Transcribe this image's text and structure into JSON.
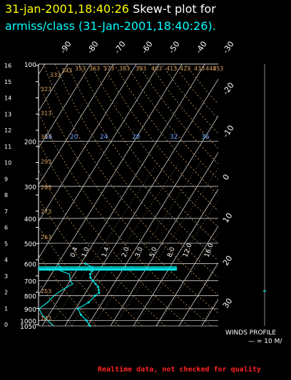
{
  "header": {
    "timestamp": "31-jan-2001,18:40:26",
    "title": "Skew-t plot for",
    "subtitle": "armiss/class (31-Jan-2001,18:40:26)."
  },
  "footer": {
    "notice": "Realtime data, not checked for quality"
  },
  "colors": {
    "header_timestamp": "#ffff00",
    "header_title": "#ffffff",
    "subtitle": "#00ffff",
    "grid": "#cccccc",
    "dry_adiabat": "#d9a060",
    "moist_adiabat": "#c9b98a",
    "mixing_ratio": "#6aa6ff",
    "sounding": "#00e5e5",
    "notice": "#ff2222"
  },
  "chart_data": {
    "type": "line",
    "title": "Skew-t plot for",
    "pressure_axis_label_values": [
      "100",
      "200",
      "300",
      "400",
      "500",
      "600",
      "700",
      "800",
      "900",
      "1000",
      "1050"
    ],
    "height_km_ticks": [
      "0",
      "1",
      "2",
      "3",
      "4",
      "5",
      "6",
      "7",
      "8",
      "9",
      "10",
      "11",
      "12",
      "13",
      "14",
      "15",
      "16"
    ],
    "temperature_ticks": [
      "-90",
      "-80",
      "-70",
      "-60",
      "-50",
      "-40",
      "-30",
      "-20",
      "-10",
      "0",
      "10",
      "20",
      "30"
    ],
    "dry_adiabat_labels": [
      "243",
      "253",
      "263",
      "273",
      "283",
      "293",
      "303",
      "313",
      "323",
      "333",
      "343",
      "353",
      "363",
      "373",
      "383",
      "393",
      "403",
      "413",
      "423",
      "433",
      "443",
      "453"
    ],
    "mixing_ratio_labels": [
      "16",
      "20",
      "24",
      "28",
      "32",
      "36"
    ],
    "moist_adiabat_labels": [
      "0.4",
      "1.0",
      "1.4",
      "2.0",
      "3.0",
      "5.0",
      "8.0",
      "12.0",
      "16.0"
    ],
    "sounding": {
      "temperature_c": [
        [
          1050,
          -9
        ],
        [
          1000,
          -12
        ],
        [
          950,
          -16
        ],
        [
          900,
          -19
        ],
        [
          850,
          -16
        ],
        [
          800,
          -15
        ],
        [
          780,
          -14
        ],
        [
          760,
          -15
        ],
        [
          740,
          -16
        ],
        [
          720,
          -18
        ],
        [
          700,
          -20
        ],
        [
          680,
          -22
        ],
        [
          660,
          -23
        ],
        [
          640,
          -23
        ],
        [
          620,
          -24
        ],
        [
          600,
          -28
        ]
      ],
      "dewpoint_c": [
        [
          1050,
          -25
        ],
        [
          1000,
          -29
        ],
        [
          950,
          -33
        ],
        [
          900,
          -36
        ],
        [
          850,
          -34
        ],
        [
          800,
          -33
        ],
        [
          760,
          -31
        ],
        [
          720,
          -28
        ],
        [
          700,
          -30
        ],
        [
          660,
          -32
        ],
        [
          640,
          -37
        ],
        [
          620,
          -38
        ],
        [
          600,
          -40
        ]
      ]
    },
    "winds_profile": {
      "label": "WINDS PROFILE",
      "scale_label": "— = 10 M/"
    },
    "xlim": [
      -40,
      40
    ],
    "ylim": [
      1050,
      100
    ]
  }
}
